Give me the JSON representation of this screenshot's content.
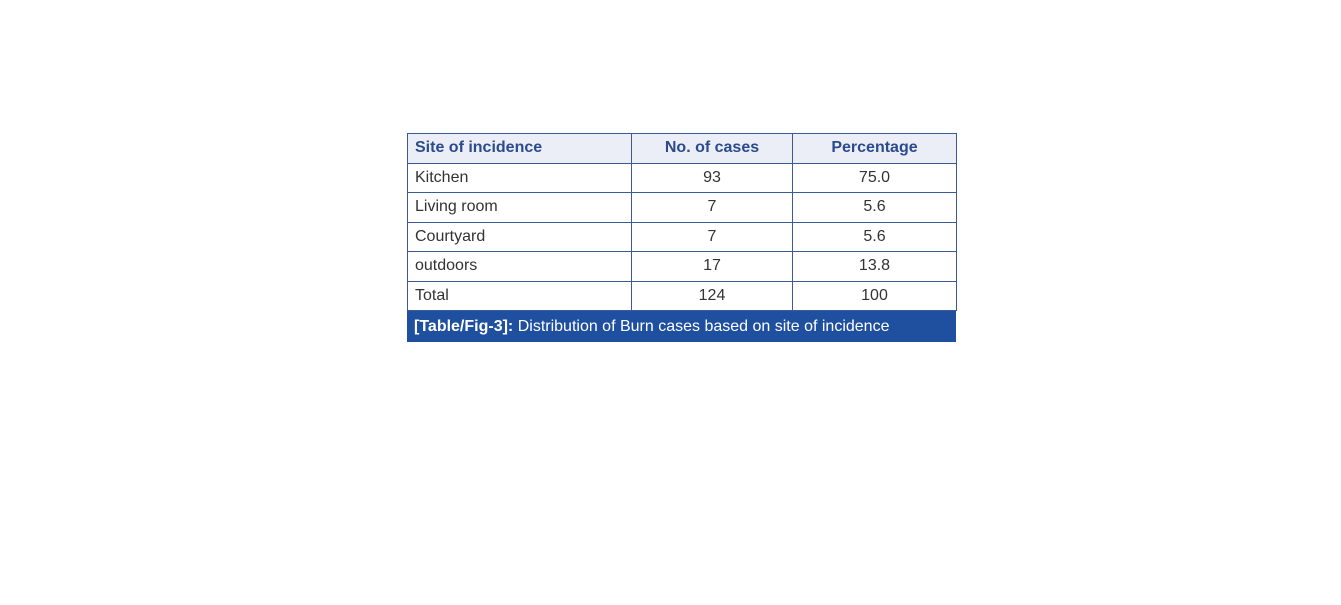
{
  "table": {
    "header": [
      "Site of incidence",
      "No. of cases",
      "Percentage"
    ],
    "rows": [
      [
        "Kitchen",
        "93",
        "75.0"
      ],
      [
        "Living room",
        "7",
        "5.6"
      ],
      [
        "Courtyard",
        "7",
        "5.6"
      ],
      [
        "outdoors",
        "17",
        "13.8"
      ],
      [
        "Total",
        "124",
        "100"
      ]
    ],
    "caption": {
      "label": "[Table/Fig-3]:",
      "text": "Distribution of Burn cases based on site of incidence"
    }
  }
}
